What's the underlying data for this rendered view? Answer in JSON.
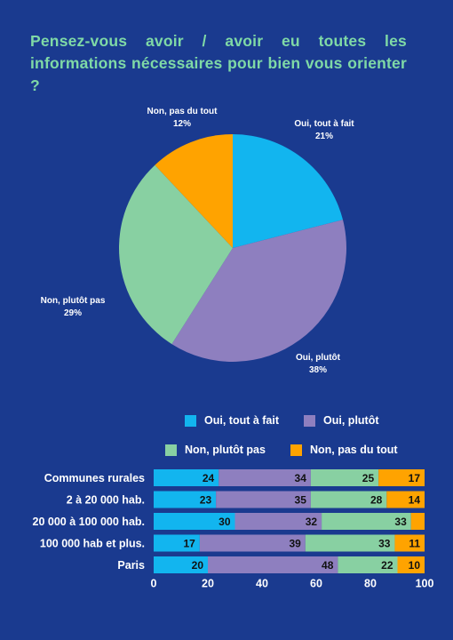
{
  "title": "Pensez-vous avoir / avoir eu toutes les informations nécessaires pour bien vous orienter ?",
  "colors": {
    "background": "#1a3a8f",
    "title": "#7fd9a6",
    "oui_tout_a_fait": "#12b5ef",
    "oui_plutot": "#8e7fbf",
    "non_plutot_pas": "#88d0a2",
    "non_pas_du_tout": "#ffa300"
  },
  "chart_data": [
    {
      "type": "pie",
      "slices": [
        {
          "label": "Oui, tout à fait",
          "value": 21,
          "value_label": "21%",
          "color": "#12b5ef"
        },
        {
          "label": "Oui, plutôt",
          "value": 38,
          "value_label": "38%",
          "color": "#8e7fbf"
        },
        {
          "label": "Non, plutôt pas",
          "value": 29,
          "value_label": "29%",
          "color": "#88d0a2"
        },
        {
          "label": "Non, pas du tout",
          "value": 12,
          "value_label": "12%",
          "color": "#ffa300"
        }
      ]
    },
    {
      "type": "bar",
      "orientation": "horizontal",
      "stacked": true,
      "legend": [
        "Oui, tout à fait",
        "Oui, plutôt",
        "Non, plutôt pas",
        "Non, pas du tout"
      ],
      "categories": [
        "Communes rurales",
        "2 à 20 000 hab.",
        "20 000 à 100 000 hab.",
        "100 000 hab et plus.",
        "Paris"
      ],
      "series": [
        {
          "name": "Oui, tout à fait",
          "color": "#12b5ef",
          "values": [
            24,
            23,
            30,
            17,
            20
          ]
        },
        {
          "name": "Oui, plutôt",
          "color": "#8e7fbf",
          "values": [
            34,
            35,
            32,
            39,
            48
          ]
        },
        {
          "name": "Non, plutôt pas",
          "color": "#88d0a2",
          "values": [
            25,
            28,
            33,
            33,
            22
          ]
        },
        {
          "name": "Non, pas du tout",
          "color": "#ffa300",
          "values": [
            17,
            14,
            null,
            11,
            10
          ]
        }
      ],
      "xlim": [
        0,
        100
      ],
      "xticks": [
        "0",
        "20",
        "40",
        "60",
        "80",
        "100"
      ]
    }
  ]
}
